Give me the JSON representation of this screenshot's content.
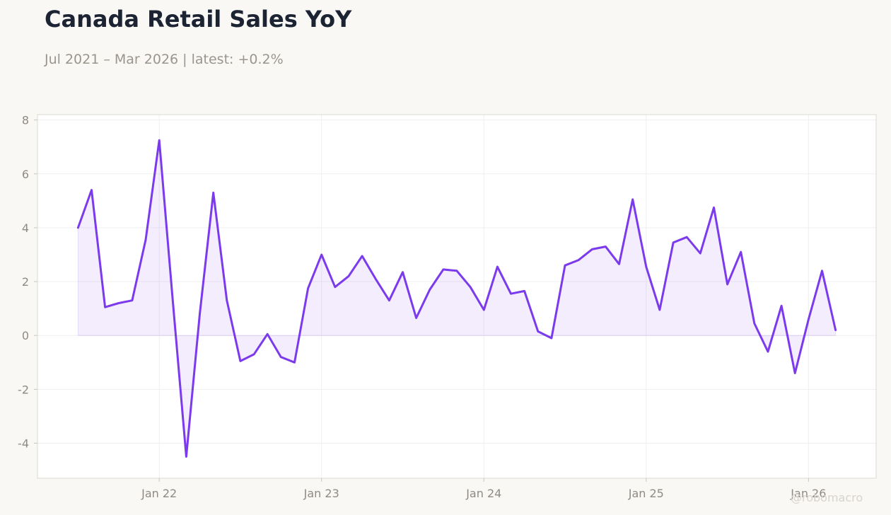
{
  "title": "Canada Retail Sales YoY",
  "subtitle": "Jul 2021 – Mar 2026 | latest: +0.2%",
  "watermark": "@robomacro",
  "colors": {
    "line": "#7c3aed",
    "fill": "#7c3aed",
    "background": "#f9f8f5",
    "plot_background": "#ffffff",
    "grid": "#efefef"
  },
  "chart_data": {
    "type": "area",
    "title": "Canada Retail Sales YoY",
    "subtitle": "Jul 2021 – Mar 2026 | latest: +0.2%",
    "xlabel": "",
    "ylabel": "",
    "ylim": [
      -5.3,
      8.2
    ],
    "xlim": [
      "2021-04",
      "2026-06"
    ],
    "grid": true,
    "legend": "none",
    "y_ticks": [
      8,
      6,
      4,
      2,
      0,
      -2,
      -4
    ],
    "y_tick_labels": [
      "8",
      "6",
      "4",
      "2",
      "0",
      "-2",
      "-4"
    ],
    "x_ticks": [
      "2022-01",
      "2023-01",
      "2024-01",
      "2025-01",
      "2026-01"
    ],
    "x_tick_labels": [
      "Jan 22",
      "Jan 23",
      "Jan 24",
      "Jan 25",
      "Jan 26"
    ],
    "series": [
      {
        "x": [
          "2021-07",
          "2021-08",
          "2021-09",
          "2021-10",
          "2021-11",
          "2021-12",
          "2022-01",
          "2022-02",
          "2022-03",
          "2022-04",
          "2022-05",
          "2022-06",
          "2022-07",
          "2022-08",
          "2022-09",
          "2022-10",
          "2022-11",
          "2022-12",
          "2023-01",
          "2023-02",
          "2023-03",
          "2023-04",
          "2023-05",
          "2023-06",
          "2023-07",
          "2023-08",
          "2023-09",
          "2023-10",
          "2023-11",
          "2023-12",
          "2024-01",
          "2024-02",
          "2024-03",
          "2024-04",
          "2024-05",
          "2024-06",
          "2024-07",
          "2024-08",
          "2024-09",
          "2024-10",
          "2024-11",
          "2024-12",
          "2025-01",
          "2025-02",
          "2025-03",
          "2025-04",
          "2025-05",
          "2025-06",
          "2025-07",
          "2025-08",
          "2025-09",
          "2025-10",
          "2025-11",
          "2025-12",
          "2026-01",
          "2026-02",
          "2026-03"
        ],
        "values": [
          4.0,
          5.4,
          1.05,
          1.2,
          1.3,
          3.55,
          7.25,
          1.3,
          -4.5,
          0.8,
          5.3,
          1.3,
          -0.95,
          -0.7,
          0.05,
          -0.8,
          -1.0,
          1.75,
          3.0,
          1.8,
          2.2,
          2.95,
          2.1,
          1.3,
          2.35,
          0.65,
          1.7,
          2.45,
          2.4,
          1.8,
          0.95,
          2.55,
          1.55,
          1.65,
          0.15,
          -0.1,
          2.6,
          2.8,
          3.2,
          3.3,
          2.65,
          5.05,
          2.55,
          0.95,
          3.45,
          3.65,
          3.05,
          4.75,
          1.9,
          3.1,
          0.45,
          -0.6,
          1.1,
          -1.4,
          0.6,
          2.4,
          0.2
        ]
      }
    ]
  }
}
